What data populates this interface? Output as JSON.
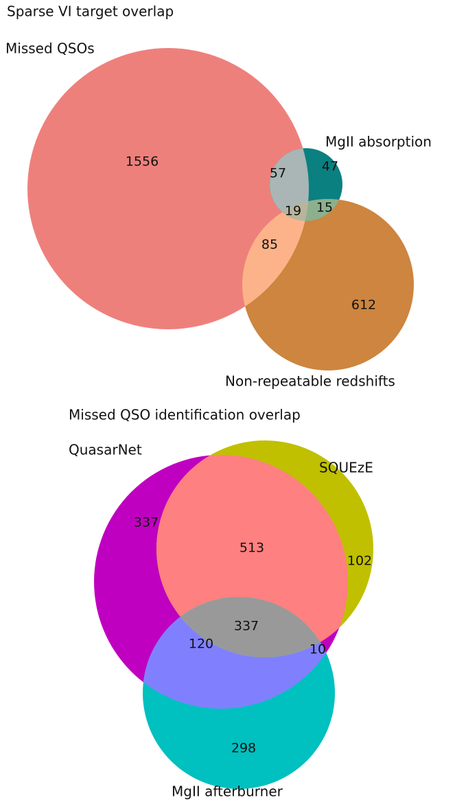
{
  "chart_data": [
    {
      "type": "venn",
      "title": "Sparse VI target overlap",
      "sets": [
        {
          "name": "Missed QSOs"
        },
        {
          "name": "MgII absorption"
        },
        {
          "name": "Non-repeatable redshifts"
        }
      ],
      "regions": [
        {
          "sets": [
            0
          ],
          "value": 1556,
          "color": "#ee807c"
        },
        {
          "sets": [
            1
          ],
          "value": 47,
          "color": "#0b8080"
        },
        {
          "sets": [
            2
          ],
          "value": 612,
          "color": "#cd853f"
        },
        {
          "sets": [
            0,
            1
          ],
          "value": 57,
          "color": "#a9b6b5"
        },
        {
          "sets": [
            0,
            2
          ],
          "value": 85,
          "color": "#fdb38a"
        },
        {
          "sets": [
            1,
            2
          ],
          "value": 15,
          "color": "#8cb08e"
        },
        {
          "sets": [
            0,
            1,
            2
          ],
          "value": 19,
          "color": "#b8b59c"
        }
      ]
    },
    {
      "type": "venn",
      "title": "Missed QSO identification overlap",
      "sets": [
        {
          "name": "QuasarNet"
        },
        {
          "name": "SQUEzE"
        },
        {
          "name": "MgII afterburner"
        }
      ],
      "regions": [
        {
          "sets": [
            0
          ],
          "value": 337,
          "color": "#c000c0"
        },
        {
          "sets": [
            1
          ],
          "value": 102,
          "color": "#c0c000"
        },
        {
          "sets": [
            2
          ],
          "value": 298,
          "color": "#00c0c0"
        },
        {
          "sets": [
            0,
            1
          ],
          "value": 513,
          "color": "#ff8080"
        },
        {
          "sets": [
            0,
            2
          ],
          "value": 120,
          "color": "#8080ff"
        },
        {
          "sets": [
            1,
            2
          ],
          "value": 10,
          "color": "#80ff80"
        },
        {
          "sets": [
            0,
            1,
            2
          ],
          "value": 337,
          "color": "#999999"
        }
      ]
    }
  ]
}
